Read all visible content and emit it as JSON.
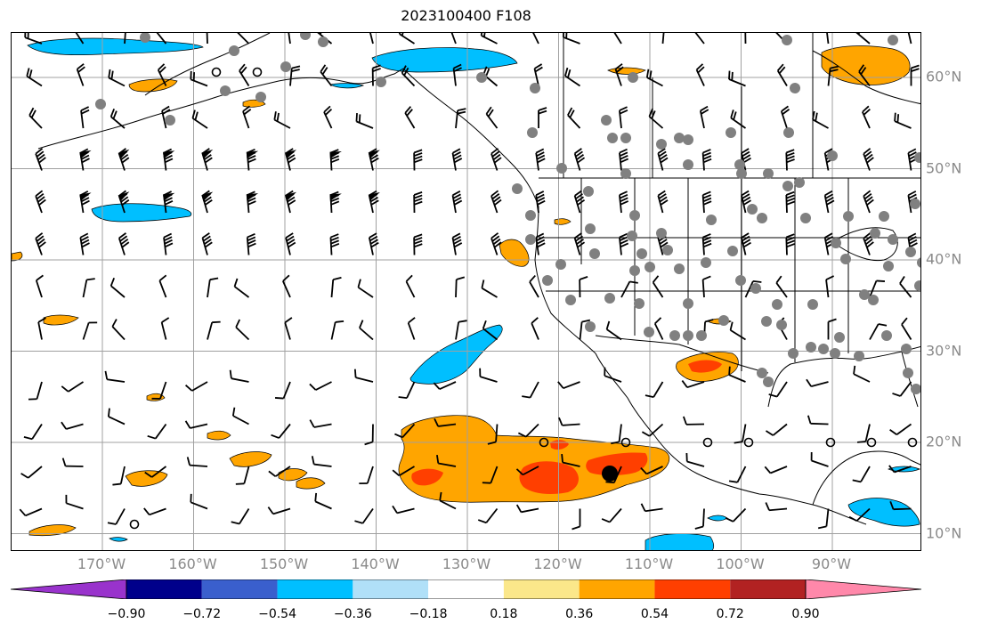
{
  "title": "2023100400 F108",
  "lon_labels": [
    "170°W",
    "160°W",
    "150°W",
    "140°W",
    "130°W",
    "120°W",
    "110°W",
    "100°W",
    "90°W"
  ],
  "lat_labels": [
    "60°N",
    "50°N",
    "40°N",
    "30°N",
    "20°N",
    "10°N"
  ],
  "colorbar": {
    "ticks": [
      "−0.90",
      "−0.72",
      "−0.54",
      "−0.36",
      "−0.18",
      "0.18",
      "0.36",
      "0.54",
      "0.72",
      "0.90"
    ],
    "colors": [
      "#9933cc",
      "#00008b",
      "#3a5fcd",
      "#00bfff",
      "#b0e0f8",
      "#ffffff",
      "#fbe78a",
      "#ffa500",
      "#ff3f00",
      "#b22222",
      "#ff88aa"
    ]
  },
  "colors": {
    "land_line": "#000000",
    "grid": "#a0a0a0",
    "station_dot": "#808080",
    "barb": "#000000"
  }
}
